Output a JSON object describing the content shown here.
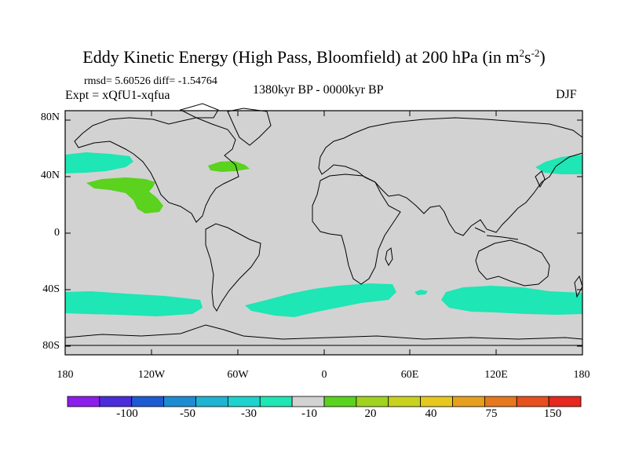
{
  "title": {
    "main": "Eddy Kinetic Energy (High Pass, Bloomfield) at 200 hPa (in m",
    "exp1": "2",
    "mid": "s",
    "exp2": "-2",
    "end": ")"
  },
  "stats": "rmsd= 5.60526 diff= -1.54764",
  "experiment": "Expt = xQfU1-xqfua",
  "period": "1380kyr BP - 0000kyr BP",
  "season": "DJF",
  "axes": {
    "lat_labels": [
      "80N",
      "40N",
      "0",
      "40S",
      "80S"
    ],
    "lon_labels": [
      "180",
      "120W",
      "60W",
      "0",
      "60E",
      "120E",
      "180"
    ]
  },
  "colorbar": {
    "labels": [
      "-100",
      "-50",
      "-30",
      "-10",
      "20",
      "40",
      "75",
      "150"
    ],
    "colors": [
      "#8c1eeb",
      "#4b2ddc",
      "#1e5ad2",
      "#1e8cd2",
      "#1eb4d2",
      "#1ed2cd",
      "#1ee6b4",
      "#d2d2d2",
      "#5ad21e",
      "#a0d21e",
      "#c8d21e",
      "#e6c81e",
      "#e6a01e",
      "#e6781e",
      "#e6501e",
      "#e6281e"
    ]
  },
  "map": {
    "background": "#d2d2d2",
    "colors": {
      "negative_band": "#1ee6b4",
      "positive": "#5ad21e"
    }
  }
}
